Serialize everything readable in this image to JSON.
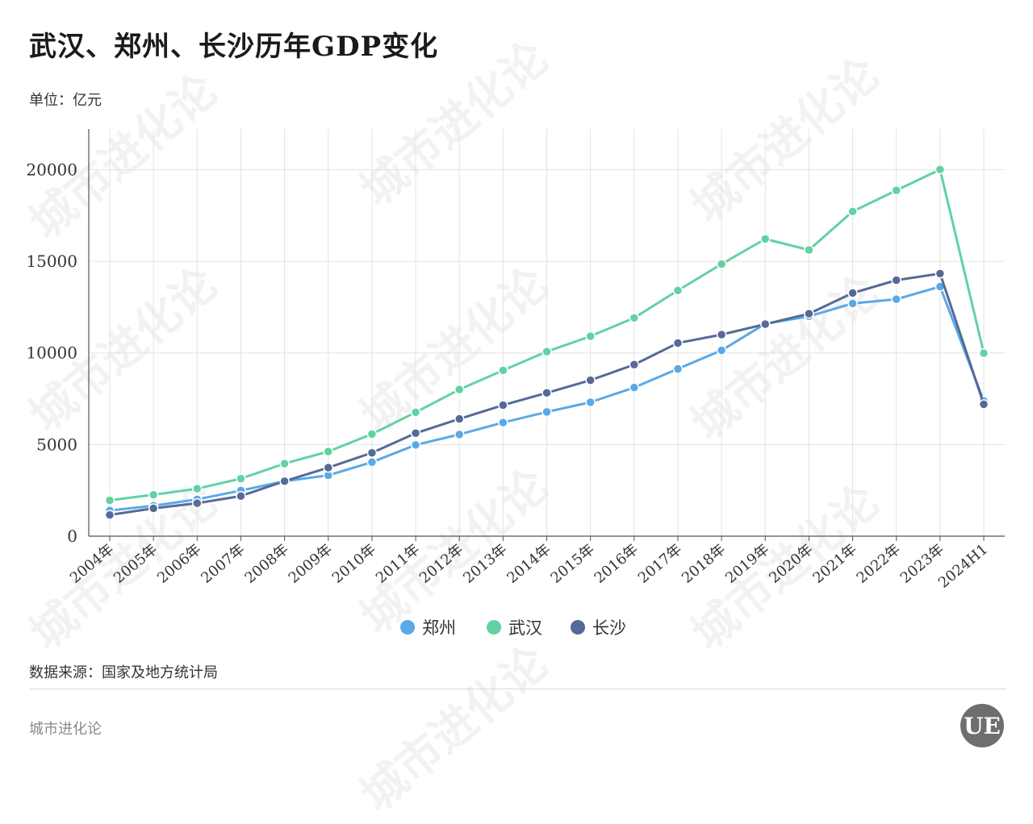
{
  "header": {
    "title": "武汉、郑州、长沙历年GDP变化",
    "unit": "单位：亿元"
  },
  "footer": {
    "source": "数据来源：国家及地方统计局",
    "brand": "城市进化论",
    "logo_text": "UE"
  },
  "watermark_text": "城市进化论",
  "colors": {
    "zhengzhou": "#5aa9e6",
    "wuhan": "#62d2a2",
    "changsha": "#556a96",
    "grid": "#e3e3e3",
    "axis": "#555555"
  },
  "chart_data": {
    "type": "line",
    "categories": [
      "2004年",
      "2005年",
      "2006年",
      "2007年",
      "2008年",
      "2009年",
      "2010年",
      "2011年",
      "2012年",
      "2013年",
      "2014年",
      "2015年",
      "2016年",
      "2017年",
      "2018年",
      "2019年",
      "2020年",
      "2021年",
      "2022年",
      "2023年",
      "2024H1"
    ],
    "ylim": [
      0,
      22000
    ],
    "yticks": [
      0,
      5000,
      10000,
      15000,
      20000
    ],
    "grid": true,
    "legend_position": "bottom",
    "series": [
      {
        "name": "郑州",
        "color": "#5aa9e6",
        "values": [
          1400,
          1660,
          2010,
          2490,
          3000,
          3320,
          4040,
          4980,
          5550,
          6200,
          6780,
          7310,
          8110,
          9130,
          10140,
          11590,
          12000,
          12700,
          12930,
          13620,
          7380
        ]
      },
      {
        "name": "武汉",
        "color": "#62d2a2",
        "values": [
          1960,
          2260,
          2590,
          3140,
          3960,
          4620,
          5570,
          6760,
          8000,
          9050,
          10070,
          10910,
          11910,
          13410,
          14850,
          16220,
          15620,
          17720,
          18870,
          20010,
          9990
        ]
      },
      {
        "name": "长沙",
        "color": "#556a96",
        "values": [
          1160,
          1520,
          1800,
          2190,
          3000,
          3740,
          4550,
          5620,
          6400,
          7150,
          7820,
          8510,
          9360,
          10540,
          11000,
          11570,
          12140,
          13270,
          13970,
          14330,
          7200
        ]
      }
    ]
  }
}
